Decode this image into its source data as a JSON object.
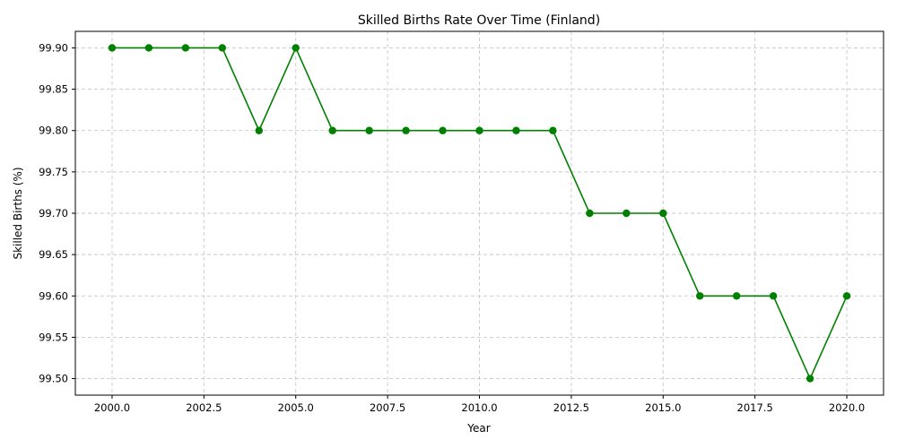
{
  "chart_data": {
    "type": "line",
    "title": "Skilled Births Rate Over Time (Finland)",
    "xlabel": "Year",
    "ylabel": "Skilled Births (%)",
    "xlim": [
      1999.0,
      2021.0
    ],
    "ylim": [
      99.48,
      99.92
    ],
    "xticks": [
      2000.0,
      2002.5,
      2005.0,
      2007.5,
      2010.0,
      2012.5,
      2015.0,
      2017.5,
      2020.0
    ],
    "xtick_labels": [
      "2000.0",
      "2002.5",
      "2005.0",
      "2007.5",
      "2010.0",
      "2012.5",
      "2015.0",
      "2017.5",
      "2020.0"
    ],
    "yticks": [
      99.5,
      99.55,
      99.6,
      99.65,
      99.7,
      99.75,
      99.8,
      99.85,
      99.9
    ],
    "ytick_labels": [
      "99.50",
      "99.55",
      "99.60",
      "99.65",
      "99.70",
      "99.75",
      "99.80",
      "99.85",
      "99.90"
    ],
    "grid": true,
    "series": [
      {
        "color": "#008000",
        "marker": "circle",
        "x": [
          2000,
          2001,
          2002,
          2003,
          2004,
          2005,
          2006,
          2007,
          2008,
          2009,
          2010,
          2011,
          2012,
          2013,
          2014,
          2015,
          2016,
          2017,
          2018,
          2019,
          2020
        ],
        "y": [
          99.9,
          99.9,
          99.9,
          99.9,
          99.8,
          99.9,
          99.8,
          99.8,
          99.8,
          99.8,
          99.8,
          99.8,
          99.8,
          99.7,
          99.7,
          99.7,
          99.6,
          99.6,
          99.6,
          99.5,
          99.6
        ]
      }
    ]
  }
}
